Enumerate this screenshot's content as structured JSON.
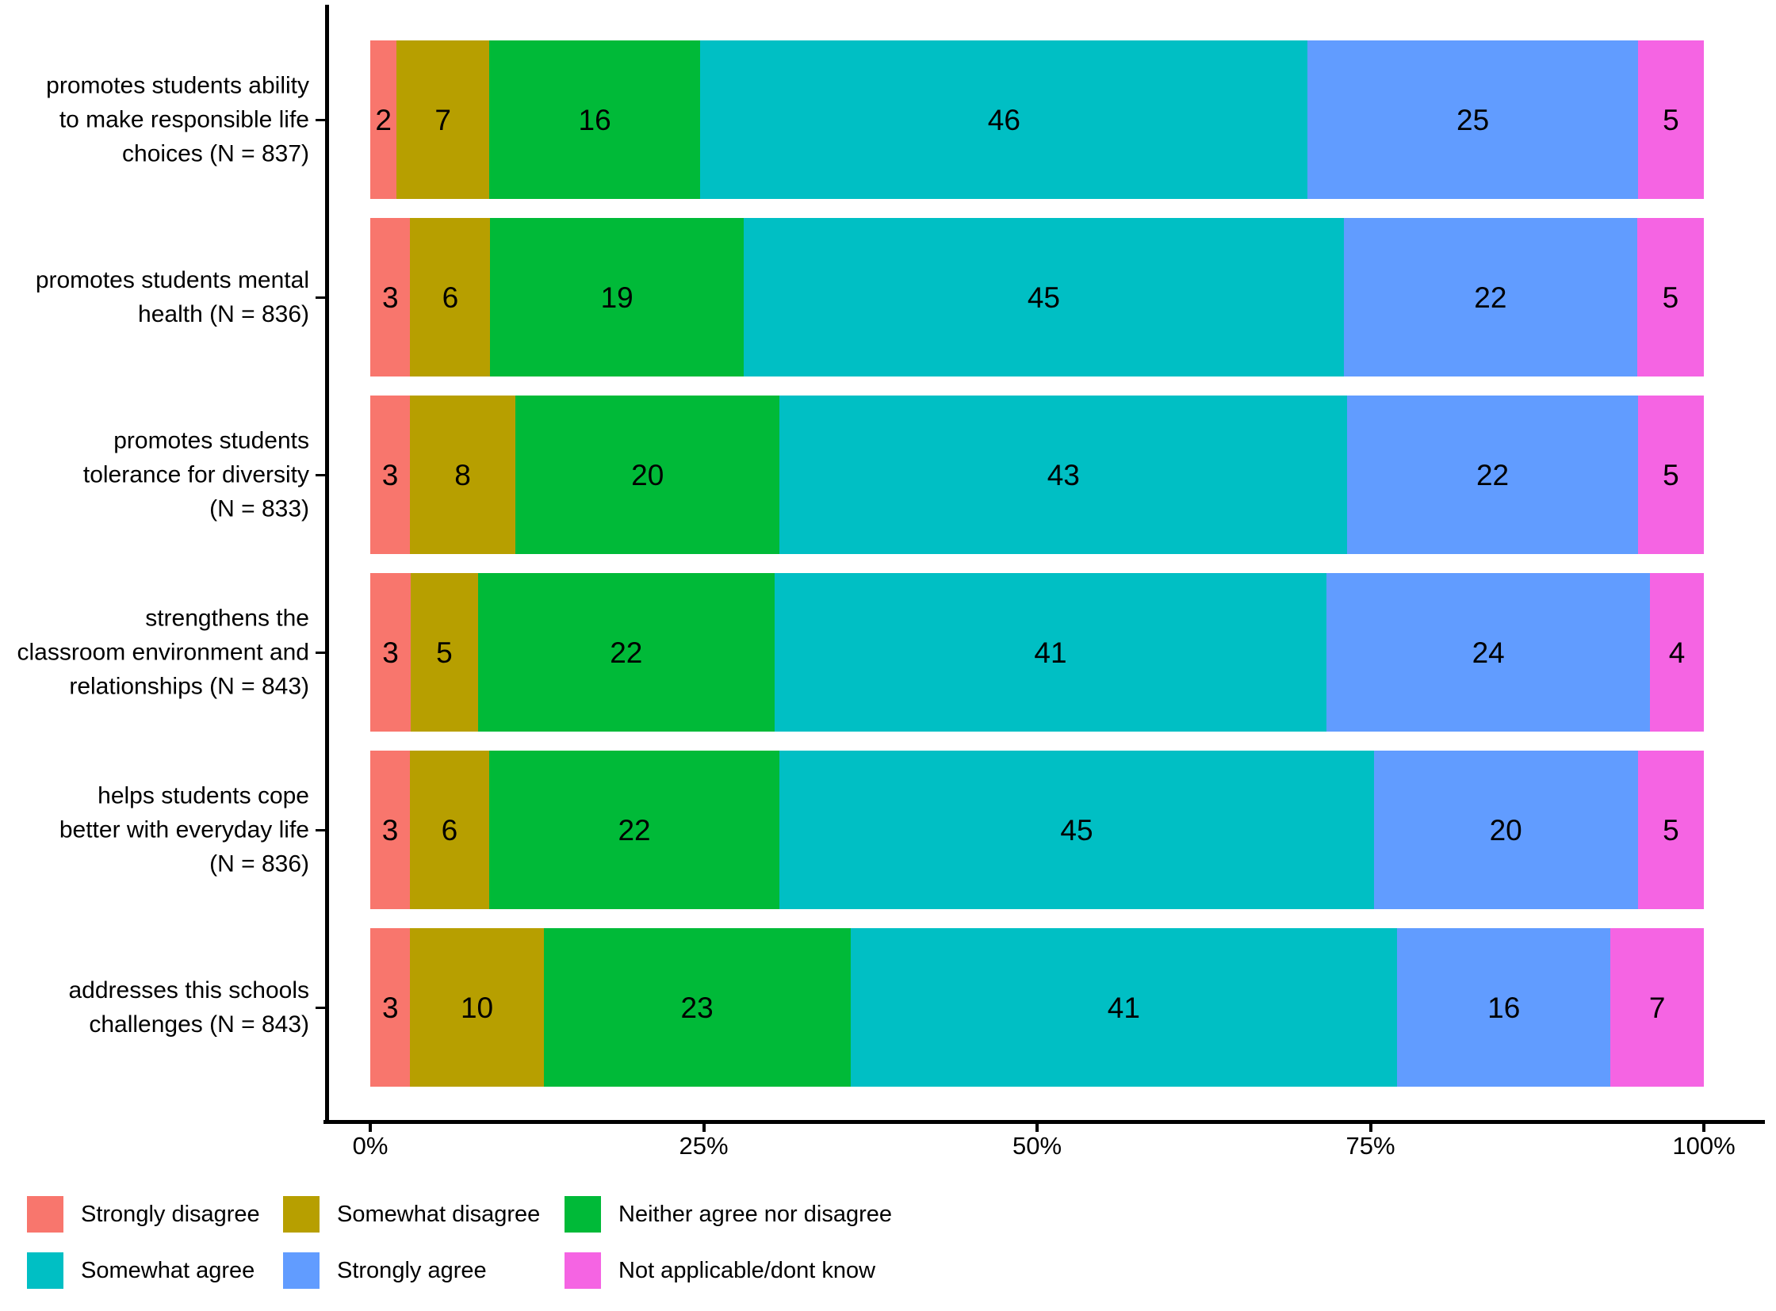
{
  "chart_data": {
    "type": "bar",
    "orientation": "horizontal",
    "stacked": "fill",
    "value_unit": "percent",
    "title": "",
    "xlabel": "",
    "ylabel": "",
    "grid": false,
    "legend_position": "bottom",
    "categories": [
      "promotes students ability\nto make responsible life\nchoices (N = 837)",
      "promotes students mental\nhealth (N = 836)",
      "promotes students\ntolerance for diversity\n(N = 833)",
      "strengthens the\nclassroom environment and\nrelationships (N = 843)",
      "helps students cope\nbetter with everyday life\n(N = 836)",
      "addresses this schools\nchallenges (N = 843)"
    ],
    "series": [
      {
        "name": "Strongly disagree",
        "color": "#F8766D",
        "values": [
          2,
          3,
          3,
          3,
          3,
          3
        ]
      },
      {
        "name": "Somewhat disagree",
        "color": "#B79F00",
        "values": [
          7,
          6,
          8,
          5,
          6,
          10
        ]
      },
      {
        "name": "Neither agree nor disagree",
        "color": "#00BA38",
        "values": [
          16,
          19,
          20,
          22,
          22,
          23
        ]
      },
      {
        "name": "Somewhat agree",
        "color": "#00BFC4",
        "values": [
          46,
          45,
          43,
          41,
          45,
          41
        ]
      },
      {
        "name": "Strongly agree",
        "color": "#619CFF",
        "values": [
          25,
          22,
          22,
          24,
          20,
          16
        ]
      },
      {
        "name": "Not applicable/dont know",
        "color": "#F564E3",
        "values": [
          5,
          5,
          5,
          4,
          5,
          7
        ]
      }
    ],
    "x_axis": {
      "tick_labels": [
        "0%",
        "25%",
        "50%",
        "75%",
        "100%"
      ],
      "range": [
        0,
        100
      ]
    },
    "axis_color": "#000000",
    "text_color": "#000000",
    "background_color": "#FFFFFF"
  }
}
